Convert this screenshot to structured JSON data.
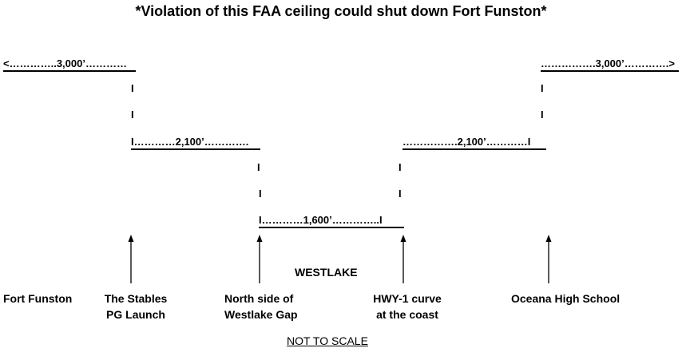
{
  "title": "*Violation of this FAA ceiling could shut down Fort Funston*",
  "segments": {
    "top_left": "<…………..3,000’…………",
    "top_right": "…………….3,000’………….>",
    "mid_left": "I…………2,100’………….",
    "mid_right": "…………….2,100’…………I",
    "low": "I…………1,600’…………..I"
  },
  "tick_mark": "I",
  "places": {
    "fort_funston": "Fort Funston",
    "stables_line1": "The Stables",
    "stables_line2": "PG Launch",
    "north_line1": "North side of",
    "north_line2": "Westlake Gap",
    "westlake": "WESTLAKE",
    "hwy_line1": "HWY-1 curve",
    "hwy_line2": "at the coast",
    "oceana": "Oceana High School"
  },
  "note": "NOT TO SCALE"
}
